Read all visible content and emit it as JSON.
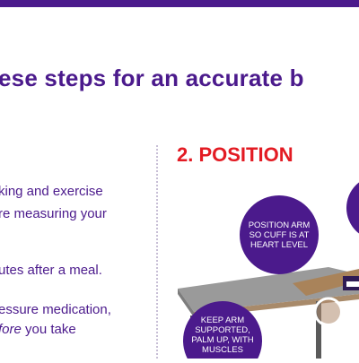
{
  "header": {
    "headline": "ese steps for an accurate b"
  },
  "left_column": {
    "lines": [
      "king and exercise",
      "re measuring your",
      "utes after a meal.",
      "essure medication,",
      "fore you take"
    ]
  },
  "position_section": {
    "title": "2. POSITION",
    "callouts": [
      "POSITION ARM SO CUFF IS AT HEART LEVEL",
      "KEEP ARM SUPPORTED, PALM UP, WITH MUSCLES"
    ]
  },
  "colors": {
    "brand_purple": "#4b1a8c",
    "accent_red": "#e31b23",
    "table_gray": "#9a9a9a",
    "table_wood": "#a88a6a"
  }
}
